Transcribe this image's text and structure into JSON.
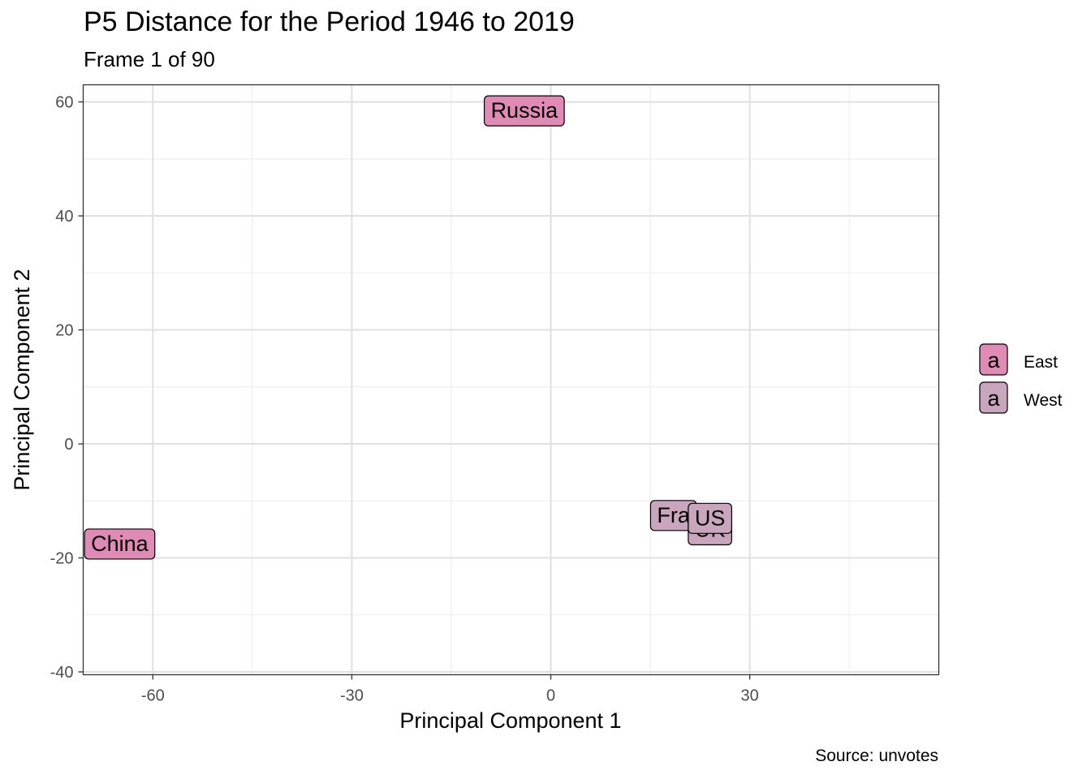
{
  "chart_data": {
    "type": "scatter",
    "title": "P5 Distance for the Period 1946 to 2019",
    "subtitle": "Frame 1 of 90",
    "caption": "Source: unvotes",
    "xlabel": "Principal Component 1",
    "ylabel": "Principal Component 2",
    "xlim": [
      -70.5,
      58.5
    ],
    "ylim": [
      -40.5,
      63
    ],
    "xticks": [
      -60,
      -30,
      0,
      30
    ],
    "xtick_labels": [
      "-60",
      "-30",
      "0",
      "30"
    ],
    "yticks": [
      -40,
      -20,
      0,
      20,
      40,
      60
    ],
    "ytick_labels": [
      "-40",
      "-20",
      "0",
      "20",
      "40",
      "60"
    ],
    "grid": true,
    "legend_position": "right",
    "legend_key_label": "a",
    "groups": [
      {
        "name": "East",
        "color": "#e08ab6"
      },
      {
        "name": "West",
        "color": "#c9a6bd"
      }
    ],
    "points": [
      {
        "label": "Russia",
        "display_text": "Russia",
        "group": "East",
        "x": -4,
        "y": 58.5
      },
      {
        "label": "China",
        "display_text": "China",
        "group": "East",
        "x": -65,
        "y": -17.5
      },
      {
        "label": "France",
        "display_text": "Fra",
        "group": "West",
        "x": 18.5,
        "y": -12.5
      },
      {
        "label": "UK",
        "display_text": "UK",
        "group": "West",
        "x": 24,
        "y": -15
      },
      {
        "label": "US",
        "display_text": "US",
        "group": "West",
        "x": 24,
        "y": -13
      }
    ]
  }
}
